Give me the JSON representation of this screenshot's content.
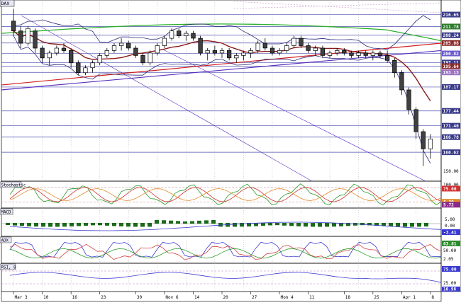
{
  "chart_data": [
    {
      "type": "candlestick",
      "panel": "price",
      "title": "DAX-Index",
      "title_visible": "DAX",
      "ylim": [
        150,
        222
      ],
      "y_tick_labels": [
        "150.00"
      ],
      "price_labels": [
        {
          "text": "216.65",
          "value": 216.65,
          "color": "#3a3a8a"
        },
        {
          "text": "211.78",
          "value": 211.78,
          "color": "#2a7a2a"
        },
        {
          "text": "208.24",
          "value": 208.24,
          "color": "#3a3a8a"
        },
        {
          "text": "205.08",
          "value": 205.08,
          "color": "#8a2a2a"
        },
        {
          "text": "200.82",
          "value": 200.82,
          "color": "#6a5acd"
        },
        {
          "text": "197.11",
          "value": 197.11,
          "color": "#3a3a8a"
        },
        {
          "text": "195.64",
          "value": 195.64,
          "color": "#8a2a2a"
        },
        {
          "text": "193.13",
          "value": 193.13,
          "color": "#9a70c0"
        },
        {
          "text": "187.17",
          "value": 187.17,
          "color": "#3a3a8a"
        },
        {
          "text": "177.44",
          "value": 177.44,
          "color": "#3a3a8a"
        },
        {
          "text": "171.40",
          "value": 171.4,
          "color": "#3a3a8a"
        },
        {
          "text": "166.78",
          "value": 166.78,
          "color": "#3a3a8a"
        },
        {
          "text": "160.62",
          "value": 160.62,
          "color": "#3a3a8a"
        }
      ],
      "x_labels": [
        "Mar 3",
        "10",
        "16",
        "23",
        "30",
        "Nov 6",
        "14",
        "20",
        "27",
        "Mon 4",
        "11",
        "18",
        "25",
        "Apr 1",
        "8"
      ],
      "candles": [
        [
          214,
          219,
          208,
          210
        ],
        [
          210,
          212,
          203,
          205
        ],
        [
          205,
          212,
          204,
          211
        ],
        [
          210,
          211,
          201,
          203
        ],
        [
          203,
          204,
          197,
          199
        ],
        [
          199,
          202,
          196,
          201
        ],
        [
          201,
          204,
          200,
          203
        ],
        [
          203,
          205,
          201,
          202
        ],
        [
          202,
          203,
          195,
          197
        ],
        [
          197,
          198,
          192,
          193
        ],
        [
          193,
          196,
          192,
          195
        ],
        [
          195,
          198,
          193,
          197
        ],
        [
          197,
          201,
          196,
          200
        ],
        [
          200,
          203,
          199,
          202
        ],
        [
          202,
          205,
          201,
          204
        ],
        [
          204,
          207,
          202,
          205
        ],
        [
          205,
          206,
          202,
          203
        ],
        [
          203,
          204,
          199,
          200
        ],
        [
          200,
          201,
          196,
          197
        ],
        [
          197,
          202,
          196,
          201
        ],
        [
          201,
          205,
          200,
          204
        ],
        [
          204,
          208,
          203,
          207
        ],
        [
          207,
          211,
          206,
          210
        ],
        [
          210,
          211,
          207,
          208
        ],
        [
          208,
          210,
          206,
          209
        ],
        [
          209,
          210,
          206,
          207
        ],
        [
          207,
          208,
          200,
          201
        ],
        [
          201,
          203,
          198,
          202
        ],
        [
          202,
          204,
          200,
          201
        ],
        [
          201,
          203,
          199,
          202
        ],
        [
          202,
          203,
          198,
          199
        ],
        [
          199,
          201,
          197,
          200
        ],
        [
          200,
          202,
          198,
          201
        ],
        [
          201,
          203,
          199,
          202
        ],
        [
          202,
          206,
          201,
          205
        ],
        [
          205,
          207,
          202,
          203
        ],
        [
          203,
          204,
          200,
          201
        ],
        [
          201,
          203,
          200,
          202
        ],
        [
          202,
          205,
          201,
          204
        ],
        [
          204,
          208,
          203,
          207
        ],
        [
          207,
          208,
          203,
          204
        ],
        [
          204,
          205,
          201,
          202
        ],
        [
          202,
          204,
          200,
          203
        ],
        [
          203,
          204,
          199,
          200
        ],
        [
          200,
          202,
          199,
          201
        ],
        [
          201,
          203,
          200,
          202
        ],
        [
          202,
          203,
          200,
          201
        ],
        [
          201,
          202,
          199,
          200
        ],
        [
          200,
          202,
          199,
          201
        ],
        [
          201,
          202,
          199,
          200
        ],
        [
          200,
          202,
          198,
          201
        ],
        [
          201,
          202,
          199,
          200
        ],
        [
          200,
          202,
          197,
          198
        ],
        [
          198,
          199,
          191,
          193
        ],
        [
          193,
          194,
          184,
          186
        ],
        [
          186,
          187,
          176,
          178
        ],
        [
          178,
          179,
          166,
          169
        ],
        [
          169,
          170,
          155,
          162
        ],
        [
          162,
          168,
          158,
          166
        ]
      ],
      "indicators": [
        "Bollinger Bands",
        "Moving Averages",
        "Trendlines",
        "Fibonacci levels"
      ]
    },
    {
      "type": "line",
      "panel": "stochastic",
      "title": "Stochastic",
      "ylim": [
        0,
        100
      ],
      "y_tick_labels": [
        "100.00",
        "75.00"
      ],
      "last_value_labels": [
        "75.00",
        "8.39",
        "5.72"
      ]
    },
    {
      "type": "bar",
      "panel": "macd",
      "title": "MACD",
      "y_tick_labels": [
        "5.00",
        "0.00"
      ],
      "last_value_labels": [
        "-3.41"
      ]
    },
    {
      "type": "line",
      "panel": "adx",
      "title": "ADX",
      "ylim": [
        0,
        100
      ],
      "y_tick_labels": [
        "50.00"
      ],
      "last_value_labels": [
        "63.81",
        "2.05"
      ]
    },
    {
      "type": "line",
      "panel": "rsi",
      "title": "RSI, 8",
      "ylim": [
        0,
        100
      ],
      "y_tick_labels": [
        "25.00"
      ],
      "last_value_labels": [
        "75.00",
        "10.98",
        "0.00"
      ]
    }
  ],
  "colors": {
    "candle_up": "#ffffff",
    "candle_down": "#404040",
    "bollinger": "#2a2a7a",
    "ma_short": "#8b1a1a",
    "ma_long": "#2ab02a",
    "trend_red": "#d02020",
    "trend_purple": "#5a30c0",
    "horizontal": "#5050b0",
    "stoch_green": "#2a9a2a",
    "stoch_red": "#d03030",
    "stoch_orange": "#e08a2a",
    "macd_bar": "#1a6a1a",
    "adx_blue": "#3a3ad0",
    "adx_red": "#d04040",
    "adx_green": "#2a9a2a",
    "rsi_line": "#3a3ad0"
  }
}
